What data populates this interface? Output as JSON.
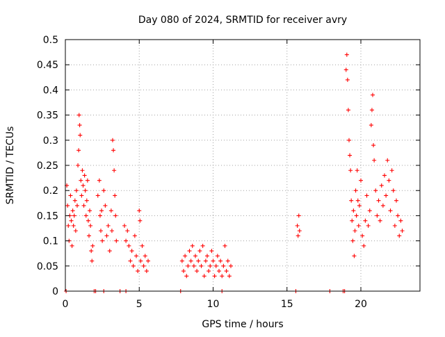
{
  "chart_data": {
    "type": "scatter",
    "title": "Day 080 of 2024, SRMTID for receiver avry",
    "xlabel": "GPS time / hours",
    "ylabel": "SRMTID / TECUs",
    "xlim": [
      0,
      24
    ],
    "ylim": [
      0,
      0.5
    ],
    "x_ticks": [
      0,
      5,
      10,
      15,
      20
    ],
    "x_tick_labels": [
      "0",
      "5",
      "10",
      "15",
      "20"
    ],
    "y_ticks": [
      0,
      0.05,
      0.1,
      0.15,
      0.2,
      0.25,
      0.3,
      0.35,
      0.4,
      0.45,
      0.5
    ],
    "y_tick_labels": [
      "0",
      "0.05",
      "0.1",
      "0.15",
      "0.2",
      "0.25",
      "0.3",
      "0.35",
      "0.4",
      "0.45",
      "0.5"
    ],
    "grid": true,
    "marker": "+",
    "color": "#ff0000",
    "series": [
      {
        "name": "SRMTID",
        "points": [
          [
            0.1,
            0.21
          ],
          [
            0.15,
            0.17
          ],
          [
            0.2,
            0.13
          ],
          [
            0.25,
            0.1
          ],
          [
            0.3,
            0.15
          ],
          [
            0.35,
            0.19
          ],
          [
            0.4,
            0.14
          ],
          [
            0.45,
            0.09
          ],
          [
            0.5,
            0.16
          ],
          [
            0.55,
            0.13
          ],
          [
            0.6,
            0.15
          ],
          [
            0.65,
            0.18
          ],
          [
            0.7,
            0.12
          ],
          [
            0.75,
            0.2
          ],
          [
            0.8,
            0.17
          ],
          [
            0.85,
            0.25
          ],
          [
            0.9,
            0.28
          ],
          [
            0.93,
            0.35
          ],
          [
            0.97,
            0.33
          ],
          [
            1.0,
            0.31
          ],
          [
            1.05,
            0.22
          ],
          [
            1.1,
            0.19
          ],
          [
            1.15,
            0.24
          ],
          [
            1.2,
            0.21
          ],
          [
            1.25,
            0.17
          ],
          [
            1.3,
            0.23
          ],
          [
            1.35,
            0.2
          ],
          [
            1.4,
            0.15
          ],
          [
            1.45,
            0.18
          ],
          [
            1.5,
            0.22
          ],
          [
            1.55,
            0.14
          ],
          [
            1.6,
            0.11
          ],
          [
            1.65,
            0.16
          ],
          [
            1.7,
            0.13
          ],
          [
            1.75,
            0.08
          ],
          [
            1.8,
            0.06
          ],
          [
            1.85,
            0.09
          ],
          [
            2.2,
            0.19
          ],
          [
            2.3,
            0.22
          ],
          [
            2.35,
            0.15
          ],
          [
            2.4,
            0.12
          ],
          [
            2.45,
            0.16
          ],
          [
            2.5,
            0.1
          ],
          [
            2.6,
            0.2
          ],
          [
            2.7,
            0.17
          ],
          [
            2.8,
            0.11
          ],
          [
            2.9,
            0.13
          ],
          [
            3.0,
            0.08
          ],
          [
            3.1,
            0.16
          ],
          [
            3.15,
            0.12
          ],
          [
            3.2,
            0.3
          ],
          [
            3.25,
            0.28
          ],
          [
            3.3,
            0.24
          ],
          [
            3.35,
            0.19
          ],
          [
            3.4,
            0.15
          ],
          [
            3.45,
            0.1
          ],
          [
            4.0,
            0.13
          ],
          [
            4.1,
            0.1
          ],
          [
            4.2,
            0.12
          ],
          [
            4.3,
            0.09
          ],
          [
            4.4,
            0.06
          ],
          [
            4.5,
            0.08
          ],
          [
            4.6,
            0.05
          ],
          [
            4.7,
            0.11
          ],
          [
            4.8,
            0.07
          ],
          [
            4.9,
            0.04
          ],
          [
            5.0,
            0.16
          ],
          [
            5.05,
            0.14
          ],
          [
            5.1,
            0.06
          ],
          [
            5.2,
            0.09
          ],
          [
            5.3,
            0.05
          ],
          [
            5.4,
            0.07
          ],
          [
            5.5,
            0.04
          ],
          [
            5.6,
            0.06
          ],
          [
            7.9,
            0.06
          ],
          [
            8.0,
            0.04
          ],
          [
            8.1,
            0.07
          ],
          [
            8.2,
            0.03
          ],
          [
            8.3,
            0.05
          ],
          [
            8.4,
            0.08
          ],
          [
            8.5,
            0.06
          ],
          [
            8.6,
            0.09
          ],
          [
            8.7,
            0.05
          ],
          [
            8.8,
            0.07
          ],
          [
            8.9,
            0.04
          ],
          [
            9.0,
            0.06
          ],
          [
            9.1,
            0.08
          ],
          [
            9.2,
            0.05
          ],
          [
            9.3,
            0.09
          ],
          [
            9.4,
            0.03
          ],
          [
            9.5,
            0.06
          ],
          [
            9.6,
            0.07
          ],
          [
            9.7,
            0.04
          ],
          [
            9.8,
            0.05
          ],
          [
            9.9,
            0.08
          ],
          [
            10.0,
            0.06
          ],
          [
            10.1,
            0.03
          ],
          [
            10.2,
            0.05
          ],
          [
            10.3,
            0.07
          ],
          [
            10.4,
            0.04
          ],
          [
            10.5,
            0.06
          ],
          [
            10.6,
            0.03
          ],
          [
            10.7,
            0.05
          ],
          [
            10.8,
            0.09
          ],
          [
            10.9,
            0.04
          ],
          [
            11.0,
            0.06
          ],
          [
            11.1,
            0.03
          ],
          [
            11.2,
            0.05
          ],
          [
            15.7,
            0.13
          ],
          [
            15.75,
            0.11
          ],
          [
            15.8,
            0.15
          ],
          [
            15.85,
            0.12
          ],
          [
            19.0,
            0.44
          ],
          [
            19.05,
            0.47
          ],
          [
            19.1,
            0.42
          ],
          [
            19.15,
            0.36
          ],
          [
            19.2,
            0.3
          ],
          [
            19.25,
            0.27
          ],
          [
            19.3,
            0.24
          ],
          [
            19.35,
            0.18
          ],
          [
            19.4,
            0.14
          ],
          [
            19.45,
            0.1
          ],
          [
            19.5,
            0.16
          ],
          [
            19.55,
            0.07
          ],
          [
            19.6,
            0.12
          ],
          [
            19.65,
            0.2
          ],
          [
            19.7,
            0.15
          ],
          [
            19.75,
            0.24
          ],
          [
            19.8,
            0.18
          ],
          [
            19.85,
            0.13
          ],
          [
            19.9,
            0.17
          ],
          [
            20.0,
            0.22
          ],
          [
            20.1,
            0.11
          ],
          [
            20.2,
            0.09
          ],
          [
            20.3,
            0.14
          ],
          [
            20.4,
            0.19
          ],
          [
            20.5,
            0.13
          ],
          [
            20.6,
            0.16
          ],
          [
            20.7,
            0.33
          ],
          [
            20.75,
            0.36
          ],
          [
            20.8,
            0.39
          ],
          [
            20.85,
            0.29
          ],
          [
            20.9,
            0.26
          ],
          [
            21.0,
            0.2
          ],
          [
            21.1,
            0.15
          ],
          [
            21.2,
            0.18
          ],
          [
            21.3,
            0.14
          ],
          [
            21.4,
            0.21
          ],
          [
            21.5,
            0.17
          ],
          [
            21.6,
            0.23
          ],
          [
            21.7,
            0.19
          ],
          [
            21.8,
            0.26
          ],
          [
            21.9,
            0.22
          ],
          [
            22.0,
            0.16
          ],
          [
            22.1,
            0.24
          ],
          [
            22.2,
            0.2
          ],
          [
            22.3,
            0.13
          ],
          [
            22.4,
            0.18
          ],
          [
            22.5,
            0.15
          ],
          [
            22.6,
            0.11
          ],
          [
            22.7,
            0.14
          ],
          [
            22.8,
            0.12
          ],
          [
            0.05,
            0.0
          ],
          [
            1.95,
            0.0
          ],
          [
            2.05,
            0.0
          ],
          [
            2.6,
            0.0
          ],
          [
            3.7,
            0.0
          ],
          [
            4.1,
            0.0
          ],
          [
            7.8,
            0.0
          ],
          [
            10.6,
            0.0
          ],
          [
            15.6,
            0.0
          ],
          [
            17.9,
            0.0
          ],
          [
            18.8,
            0.0
          ],
          [
            18.9,
            0.0
          ]
        ]
      }
    ]
  }
}
